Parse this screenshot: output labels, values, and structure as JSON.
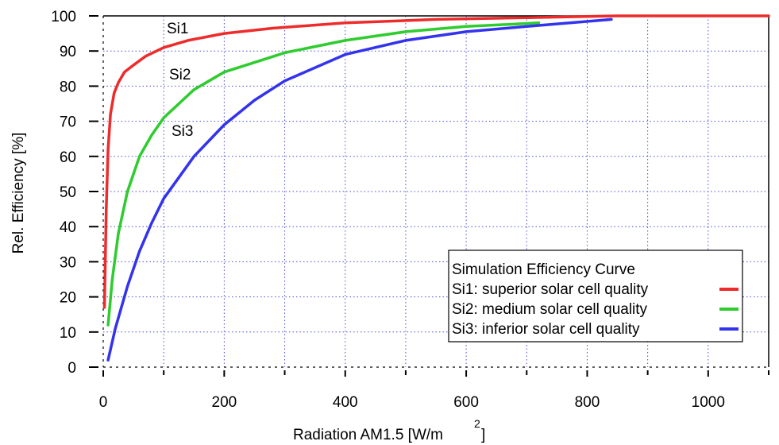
{
  "chart_data": {
    "type": "line",
    "xlabel": "Radiation AM1.5 [W/m",
    "xlabel_superscript": "2",
    "xlabel_suffix": "]",
    "ylabel": "Rel.  Efficiency [%]",
    "xlim": [
      0,
      1100
    ],
    "ylim": [
      0,
      100
    ],
    "x_ticks": [
      0,
      200,
      400,
      600,
      800,
      1000
    ],
    "y_ticks": [
      0,
      10,
      20,
      30,
      40,
      50,
      60,
      70,
      80,
      90,
      100
    ],
    "grid": true,
    "legend_position": "bottom-right",
    "legend": {
      "title": "Simulation Efficiency Curve"
    },
    "series": [
      {
        "name": "Si1: superior solar cell quality",
        "short_label": "Si1",
        "color": "#ee2b2b",
        "x": [
          2,
          5,
          8,
          12,
          18,
          25,
          35,
          50,
          70,
          100,
          140,
          200,
          280,
          400,
          550,
          700,
          850,
          1100
        ],
        "y": [
          17,
          45,
          62,
          72,
          78,
          81,
          84,
          86,
          88.5,
          91,
          93,
          95,
          96.5,
          98,
          99,
          99.5,
          100,
          100
        ]
      },
      {
        "name": "Si2: medium solar cell quality",
        "short_label": "Si2",
        "color": "#2ecc2e",
        "x": [
          8,
          15,
          25,
          40,
          60,
          80,
          100,
          150,
          200,
          300,
          400,
          500,
          600,
          720
        ],
        "y": [
          12,
          25,
          38,
          50,
          60,
          66,
          71,
          79,
          84,
          89.5,
          93,
          95.5,
          97,
          98
        ]
      },
      {
        "name": "Si3: inferior solar cell quality",
        "short_label": "Si3",
        "color": "#3333ee",
        "x": [
          8,
          20,
          40,
          60,
          80,
          100,
          150,
          200,
          250,
          300,
          400,
          500,
          600,
          700,
          840
        ],
        "y": [
          2,
          11,
          23,
          33,
          41,
          48,
          60,
          69,
          76,
          81.5,
          89,
          93,
          95.5,
          97,
          99
        ]
      }
    ]
  }
}
